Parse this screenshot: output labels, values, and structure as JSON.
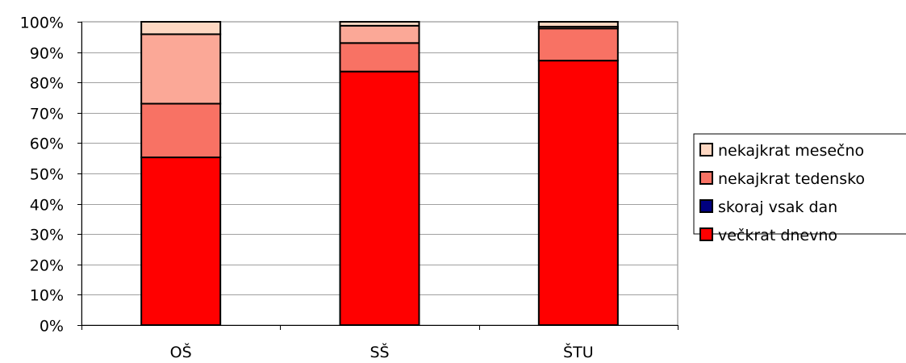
{
  "chart_data": {
    "type": "bar",
    "stacked": true,
    "percent": true,
    "categories": [
      "OŠ",
      "SŠ",
      "ŠTU"
    ],
    "series": [
      {
        "name": "večkrat dnevno",
        "color": "#ff0000",
        "values": [
          55.3,
          83.6,
          87.2
        ]
      },
      {
        "name": "skoraj vsak dan",
        "color": "#000080",
        "values": [
          0,
          0,
          0
        ]
      },
      {
        "name": "nekajkrat tedensko",
        "color": "#f87264",
        "values": [
          17.7,
          9.4,
          10.6
        ]
      },
      {
        "name": "",
        "color": "#fba897",
        "values": [
          22.9,
          5.7,
          0.6
        ]
      },
      {
        "name": "nekajkrat mesečno",
        "color": "#fdd7c2",
        "values": [
          4.1,
          1.3,
          1.6
        ]
      }
    ],
    "legend_order": [
      4,
      2,
      1,
      0
    ],
    "legend_position": "right",
    "ylim": [
      0,
      100
    ],
    "yticks": [
      "0%",
      "10%",
      "20%",
      "30%",
      "40%",
      "50%",
      "60%",
      "70%",
      "80%",
      "90%",
      "100%"
    ],
    "grid": true
  }
}
